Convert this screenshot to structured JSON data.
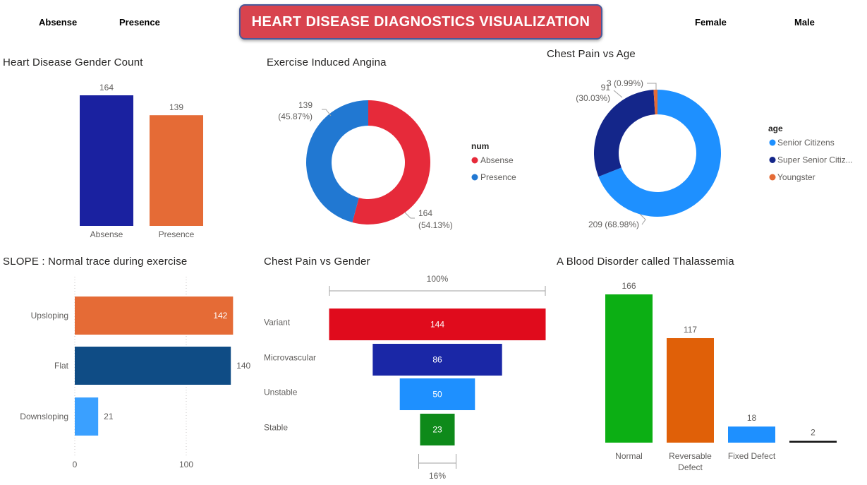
{
  "header": {
    "title": "HEART DISEASE DIAGNOSTICS VISUALIZATION",
    "slicers": [
      "Absense",
      "Presence",
      "Female",
      "Male"
    ]
  },
  "colors": {
    "banner": "#d8434e",
    "navy": "#1a21a0",
    "orange": "#e56b36",
    "red": "#e62a3a",
    "blue": "#2178d2",
    "light_blue": "#1e90ff",
    "dark_blue": "#14268a",
    "funnel_red": "#e00b1c",
    "funnel_navy": "#1a27a6",
    "funnel_blue": "#1e90ff",
    "funnel_green": "#0e8a1a",
    "green": "#0caf14",
    "dark_orange": "#e06008"
  },
  "visuals": {
    "gender_count": {
      "title": "Heart Disease Gender Count",
      "chart_data": {
        "type": "bar",
        "categories": [
          "Absense",
          "Presence"
        ],
        "values": [
          164,
          139
        ]
      }
    },
    "angina": {
      "title": "Exercise Induced Angina",
      "legend_title": "num",
      "chart_data": {
        "type": "pie",
        "donut": true,
        "categories": [
          "Absense",
          "Presence"
        ],
        "values": [
          164,
          139
        ],
        "labels": [
          "164",
          "139"
        ],
        "percent_labels": [
          "(54.13%)",
          "(45.87%)"
        ]
      }
    },
    "chest_age": {
      "title": "Chest Pain vs Age",
      "legend_title": "age",
      "chart_data": {
        "type": "pie",
        "donut": true,
        "categories": [
          "Senior Citizens",
          "Super Senior Citiz...",
          "Youngster"
        ],
        "values": [
          209,
          91,
          3
        ],
        "labels": [
          "209 (68.98%)",
          "91",
          "3 (0.99%)"
        ],
        "percent_labels": [
          "",
          "(30.03%)",
          ""
        ]
      }
    },
    "slope": {
      "title": "SLOPE : Normal trace during exercise",
      "chart_data": {
        "type": "bar",
        "orientation": "horizontal",
        "categories": [
          "Upsloping",
          "Flat",
          "Downsloping"
        ],
        "values": [
          142,
          140,
          21
        ],
        "x_ticks": [
          "0",
          "100"
        ],
        "xlim": [
          0,
          150
        ]
      }
    },
    "chest_gender": {
      "title": "Chest Pain vs Gender",
      "top_label": "100%",
      "bottom_label": "16%",
      "chart_data": {
        "type": "bar",
        "subtype": "funnel",
        "categories": [
          "Variant",
          "Microvascular",
          "Unstable",
          "Stable"
        ],
        "values": [
          144,
          86,
          50,
          23
        ]
      }
    },
    "thalassemia": {
      "title": "A Blood Disorder called Thalassemia",
      "chart_data": {
        "type": "bar",
        "categories": [
          "Normal",
          "Reversable Defect",
          "Fixed Defect",
          ""
        ],
        "category_lines": [
          [
            "Normal"
          ],
          [
            "Reversable",
            "Defect"
          ],
          [
            "Fixed Defect"
          ],
          []
        ],
        "values": [
          166,
          117,
          18,
          2
        ]
      }
    }
  }
}
